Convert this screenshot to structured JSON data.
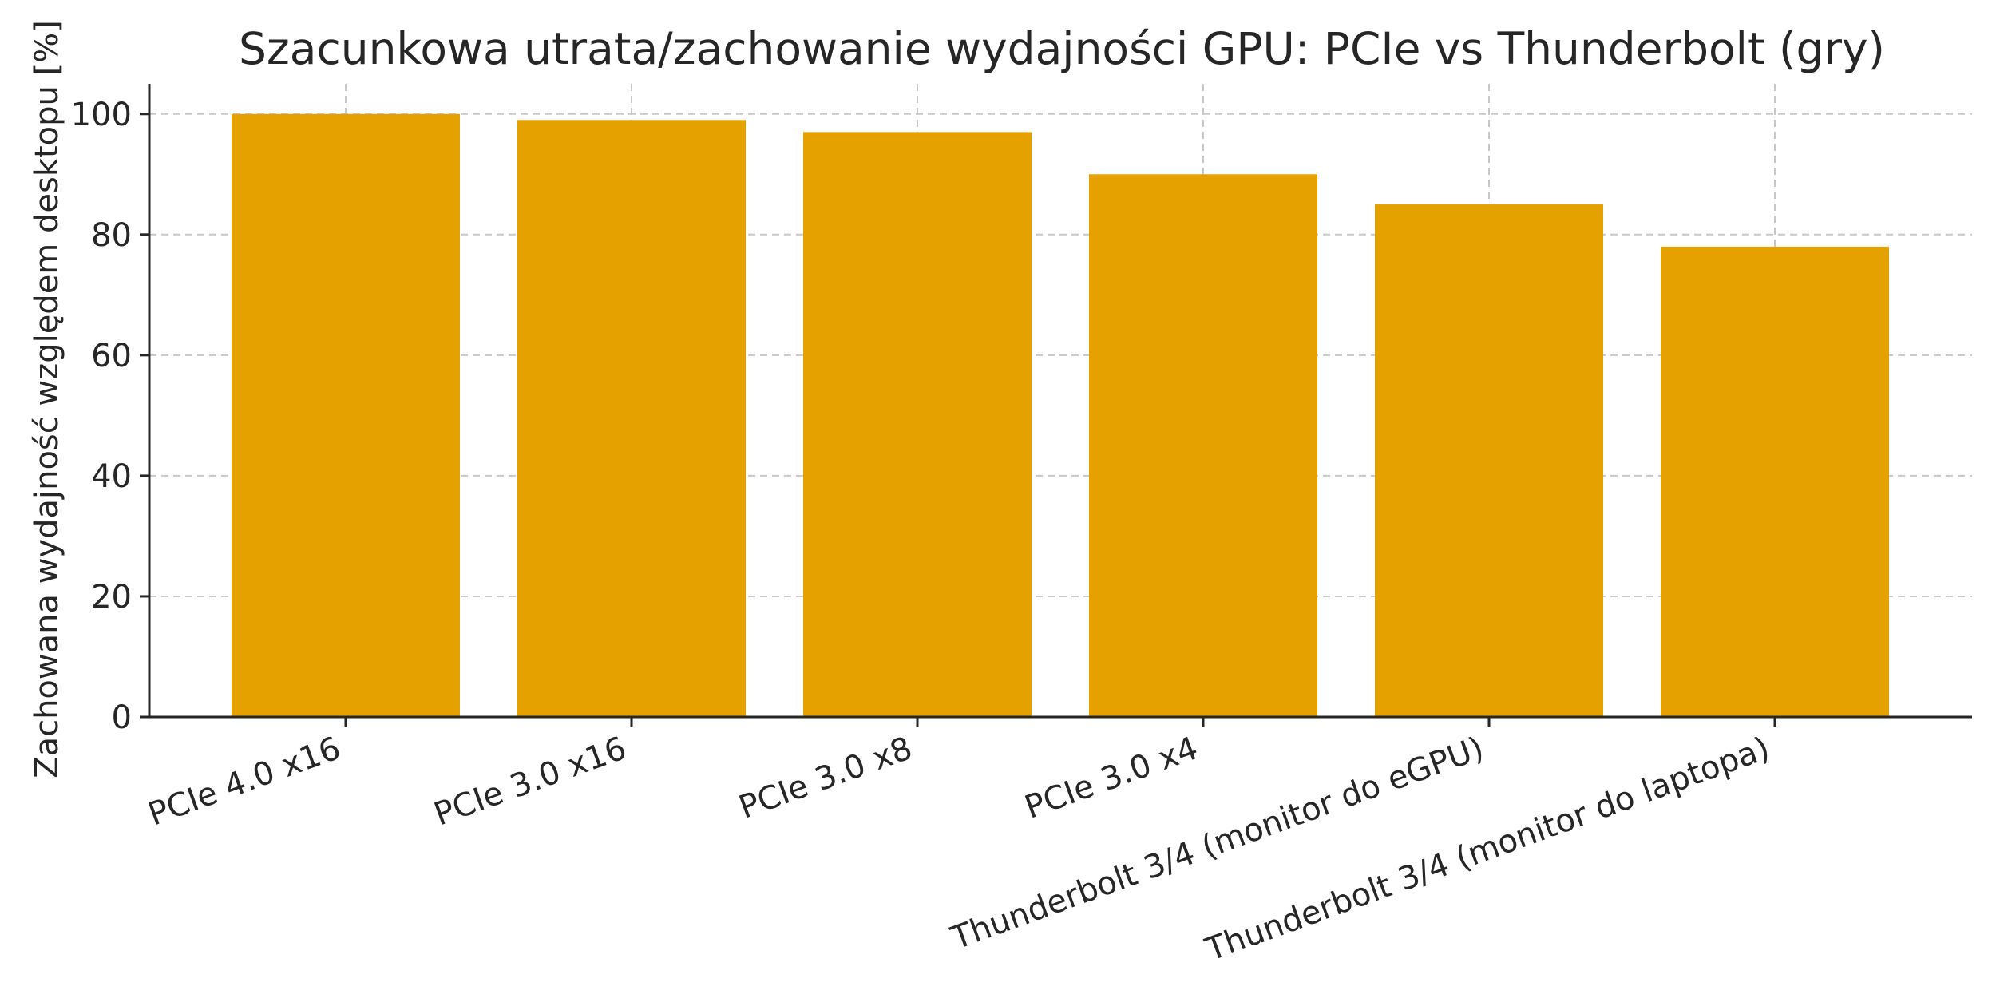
{
  "chart_data": {
    "type": "bar",
    "title": "Szacunkowa utrata/zachowanie wydajności GPU: PCIe vs Thunderbolt (gry)",
    "xlabel": "",
    "ylabel": "Zachowana wydajność względem desktopu [%]",
    "categories": [
      "PCIe 4.0 x16",
      "PCIe 3.0 x16",
      "PCIe 3.0 x8",
      "PCIe 3.0 x4",
      "Thunderbolt 3/4 (monitor do eGPU)",
      "Thunderbolt 3/4 (monitor do laptopa)"
    ],
    "values": [
      100,
      99,
      97,
      90,
      85,
      78
    ],
    "ylim": [
      0,
      105
    ],
    "yticks": [
      0,
      20,
      40,
      60,
      80,
      100
    ],
    "grid": true,
    "bar_color": "#e5a100",
    "legend": "none"
  }
}
